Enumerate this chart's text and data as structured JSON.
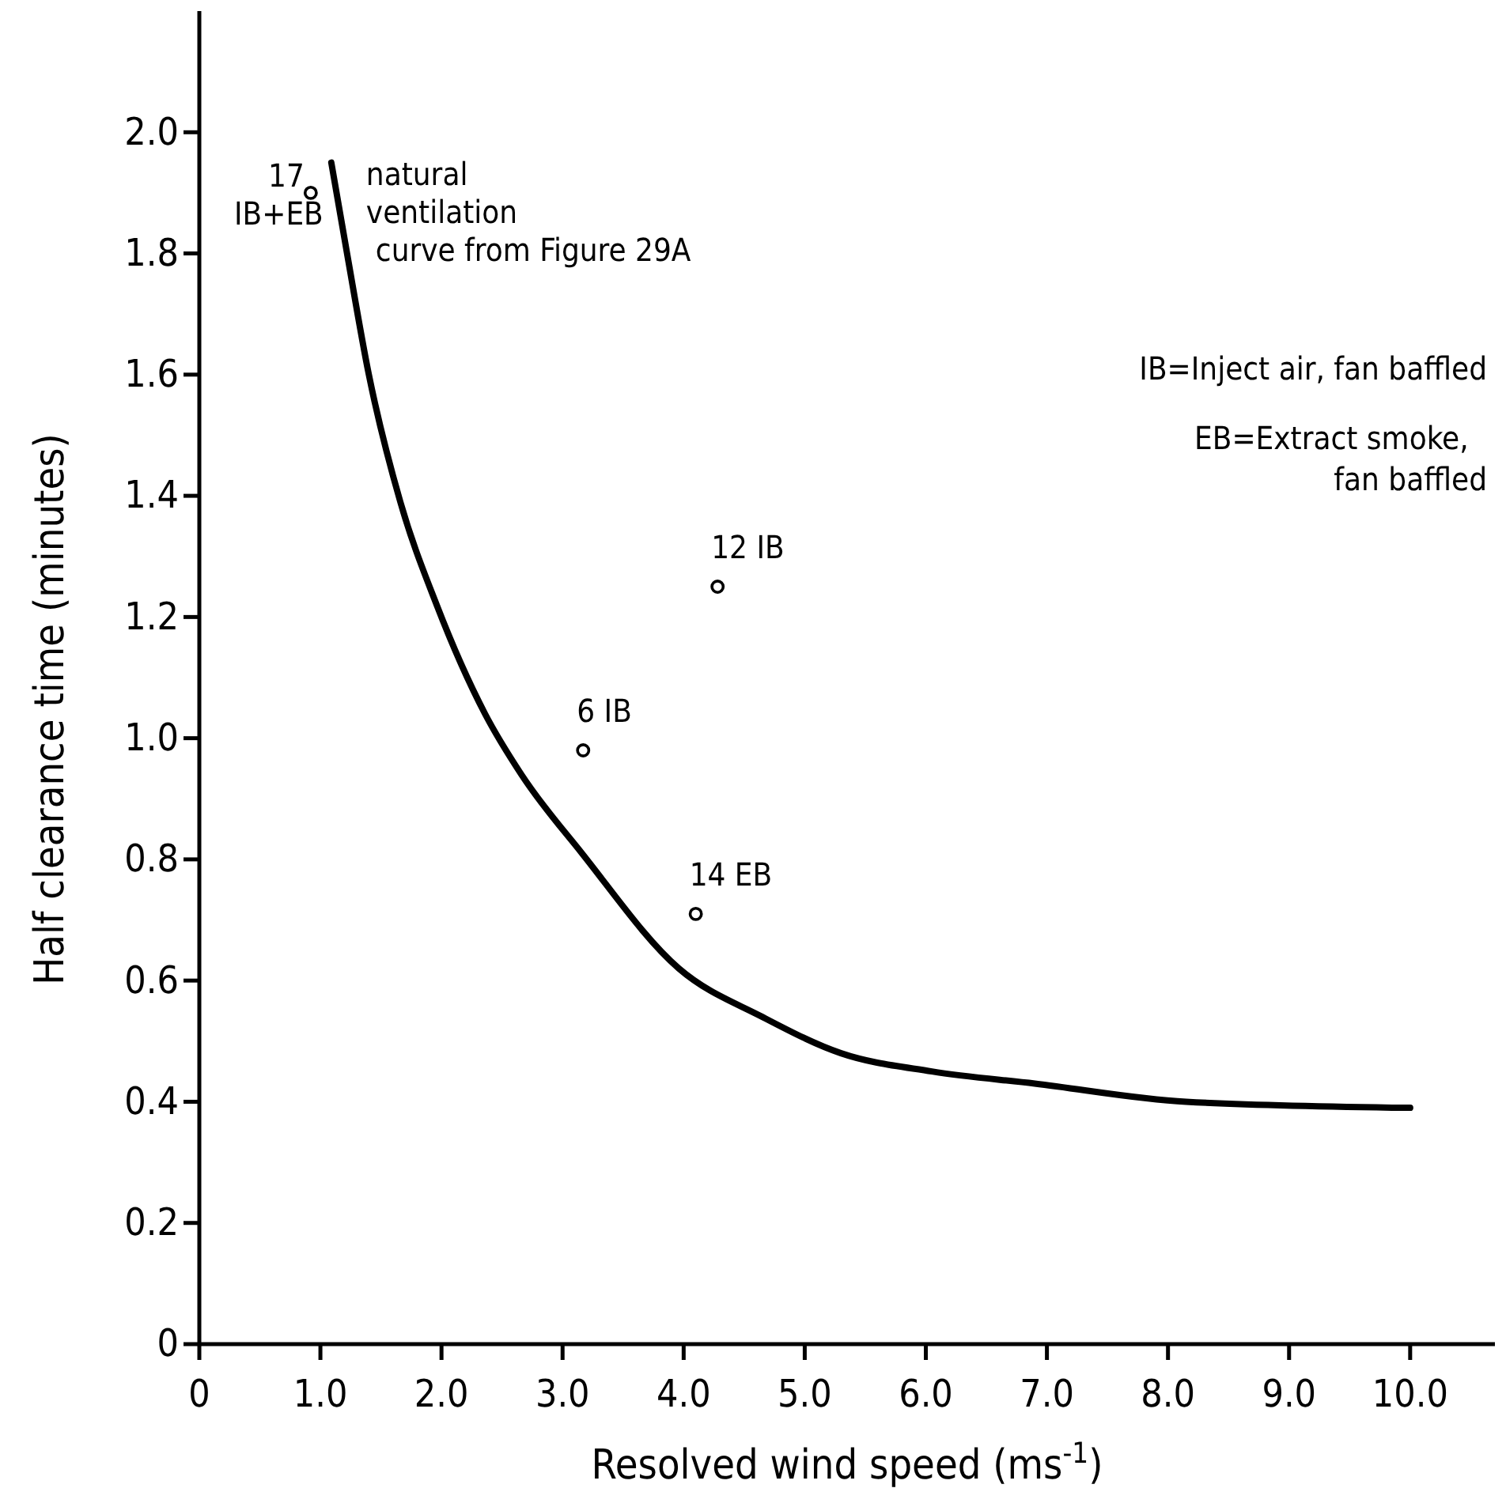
{
  "chart_data": {
    "type": "line",
    "xlabel": "Resolved wind speed (ms$^{-1}$)",
    "ylabel": "Half clearance time (minutes)",
    "xlim": [
      0,
      10.7
    ],
    "ylim": [
      0,
      2.2
    ],
    "xticks": [
      0,
      {
        "value": 1,
        "label": "1.0"
      },
      {
        "value": 2,
        "label": "2.0"
      },
      {
        "value": 3,
        "label": "3.0"
      },
      {
        "value": 4,
        "label": "4.0"
      },
      {
        "value": 5,
        "label": "5.0"
      },
      {
        "value": 6,
        "label": "6.0"
      },
      {
        "value": 7,
        "label": "7.0"
      },
      {
        "value": 8,
        "label": "8.0"
      },
      {
        "value": 9,
        "label": "9.0"
      },
      {
        "value": 10,
        "label": "10.0"
      }
    ],
    "yticks": [
      0,
      0.2,
      0.4,
      0.6,
      0.8,
      {
        "value": 1,
        "label": "1.0"
      },
      1.2,
      1.4,
      1.6,
      1.8,
      {
        "value": 2,
        "label": "2.0"
      }
    ],
    "grid": false,
    "series": [
      {
        "color": "#000000",
        "marker": "none",
        "line_style": "solid",
        "x": [
          1.09,
          1.22,
          1.4,
          1.66,
          1.96,
          2.36,
          2.66,
          3.16,
          3.96,
          4.65,
          5.3,
          6.05,
          6.9,
          8.15,
          10.0
        ],
        "values": [
          1.95,
          1.8,
          1.6,
          1.39,
          1.22,
          1.04,
          0.94,
          0.81,
          0.62,
          0.54,
          0.48,
          0.45,
          0.43,
          0.4,
          0.39
        ]
      },
      {
        "type": "scatter",
        "color": "#000000",
        "marker": "circle",
        "x": [
          0.92,
          3.17,
          4.28,
          4.1
        ],
        "values": [
          1.9,
          0.98,
          1.25,
          0.71
        ]
      }
    ],
    "annotations": [
      {
        "text": "natural\nventilation\ncurve from  Figure 29A",
        "x": 1.09,
        "y": 1.95
      },
      {
        "text": "17\nIB+EB",
        "x": 0.92,
        "y": 1.9
      },
      {
        "text": "6 IB",
        "x": 3.17,
        "y": 0.98
      },
      {
        "text": "12 IB",
        "x": 4.28,
        "y": 1.25
      },
      {
        "text": "14 EB",
        "x": 4.1,
        "y": 0.71
      },
      "IB=Inject air, fan baffled",
      "EB=Extract smoke,\nfan baffled"
    ]
  }
}
